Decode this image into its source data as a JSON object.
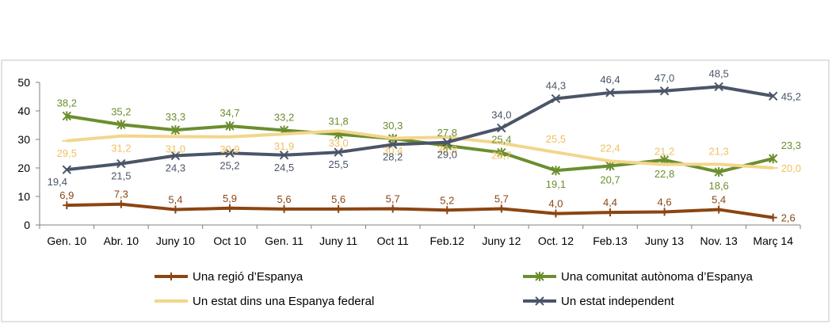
{
  "chart_data": {
    "type": "line",
    "title": "",
    "xlabel": "",
    "ylabel": "",
    "ylim": [
      0,
      50
    ],
    "yticks": [
      0,
      10,
      20,
      30,
      40,
      50
    ],
    "grid": false,
    "legend_position": "bottom",
    "categories": [
      "Gen. 10",
      "Abr. 10",
      "Juny 10",
      "Oct 10",
      "Gen. 11",
      "Juny 11",
      "Oct 11",
      "Feb.12",
      "Juny 12",
      "Oct. 12",
      "Feb.13",
      "Juny 13",
      "Nov. 13",
      "Març 14"
    ],
    "series": [
      {
        "name": "Una regió d’Espanya",
        "color": "#8B4513",
        "marker": "plus",
        "values": [
          6.9,
          7.3,
          5.4,
          5.9,
          5.6,
          5.6,
          5.7,
          5.2,
          5.7,
          4.0,
          4.4,
          4.6,
          5.4,
          2.6
        ],
        "labels": [
          "6,9",
          "7,3",
          "5,4",
          "5,9",
          "5,6",
          "5,6",
          "5,7",
          "5,2",
          "5,7",
          "4,0",
          "4,4",
          "4,6",
          "5,4",
          "2,6"
        ]
      },
      {
        "name": "Una comunitat autònoma d’Espanya",
        "color": "#6B8E2F",
        "marker": "star",
        "values": [
          38.2,
          35.2,
          33.3,
          34.7,
          33.2,
          31.8,
          30.3,
          27.8,
          25.4,
          19.1,
          20.7,
          22.8,
          18.6,
          23.3
        ],
        "labels": [
          "38,2",
          "35,2",
          "33,3",
          "34,7",
          "33,2",
          "31,8",
          "30,3",
          "27,8",
          "25,4",
          "19,1",
          "20,7",
          "22,8",
          "18,6",
          "23,3"
        ]
      },
      {
        "name": "Un estat dins una Espanya federal",
        "color": "#F2D68C",
        "label_color": "#F0C060",
        "marker": "dash",
        "values": [
          29.5,
          31.2,
          31.0,
          30.9,
          31.9,
          33.0,
          30.4,
          30.8,
          28.7,
          25.5,
          22.4,
          21.2,
          21.3,
          20.0
        ],
        "labels": [
          "29,5",
          "31,2",
          "31,0",
          "30,9",
          "31,9",
          "33,0",
          "30,4",
          "30,8",
          "28,7",
          "25,5",
          "22,4",
          "21,2",
          "21,3",
          "20,0"
        ]
      },
      {
        "name": "Un estat independent",
        "color": "#4A5568",
        "marker": "x",
        "values": [
          19.4,
          21.5,
          24.3,
          25.2,
          24.5,
          25.5,
          28.2,
          29.0,
          34.0,
          44.3,
          46.4,
          47.0,
          48.5,
          45.2
        ],
        "labels": [
          "19,4",
          "21,5",
          "24,3",
          "25,2",
          "24,5",
          "25,5",
          "28,2",
          "29,0",
          "34,0",
          "44,3",
          "46,4",
          "47,0",
          "48,5",
          "45,2"
        ]
      }
    ]
  }
}
